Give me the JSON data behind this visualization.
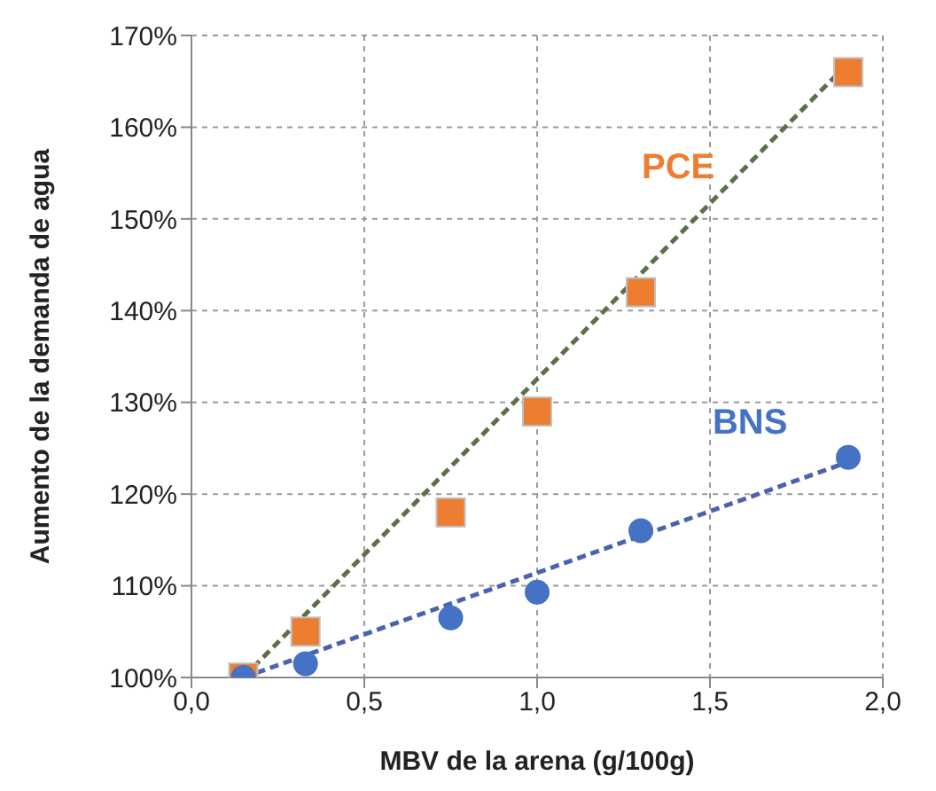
{
  "chart_data": {
    "type": "scatter",
    "xlabel": "MBV de la arena (g/100g)",
    "ylabel": "Aumento de la demanda de agua",
    "xlim": [
      0,
      2
    ],
    "xticks": [
      {
        "value": 0,
        "label": "0,0"
      },
      {
        "value": 0.5,
        "label": "0,5"
      },
      {
        "value": 1,
        "label": "1,0"
      },
      {
        "value": 1.5,
        "label": "1,5"
      },
      {
        "value": 2,
        "label": "2,0"
      }
    ],
    "ylim": [
      100,
      170
    ],
    "yticks": [
      {
        "value": 100,
        "label": "100%"
      },
      {
        "value": 110,
        "label": "110%"
      },
      {
        "value": 120,
        "label": "120%"
      },
      {
        "value": 130,
        "label": "130%"
      },
      {
        "value": 140,
        "label": "140%"
      },
      {
        "value": 150,
        "label": "150%"
      },
      {
        "value": 160,
        "label": "160%"
      },
      {
        "value": 170,
        "label": "170%"
      }
    ],
    "grid": true,
    "legend": false,
    "series": [
      {
        "name": "PCE",
        "type": "scatter",
        "color": "#ed7d31",
        "marker": "square",
        "x": [
          0.15,
          0.33,
          0.75,
          1.0,
          1.3,
          1.9
        ],
        "values": [
          100,
          105,
          118,
          129,
          142,
          166
        ]
      },
      {
        "name": "BNS",
        "type": "scatter",
        "color": "#4472c4",
        "marker": "circle",
        "x": [
          0.15,
          0.33,
          0.75,
          1.0,
          1.3,
          1.9
        ],
        "values": [
          100,
          101.5,
          106.5,
          109.3,
          116,
          124
        ]
      },
      {
        "type": "line",
        "color": "#5b7049",
        "line_style": "dashed",
        "marker": "none",
        "x": [
          0.15,
          1.9
        ],
        "values": [
          100,
          167
        ]
      },
      {
        "type": "line",
        "color": "#4a62b0",
        "line_style": "dashed",
        "marker": "none",
        "x": [
          0.15,
          1.9
        ],
        "values": [
          100,
          123.5
        ]
      }
    ]
  }
}
